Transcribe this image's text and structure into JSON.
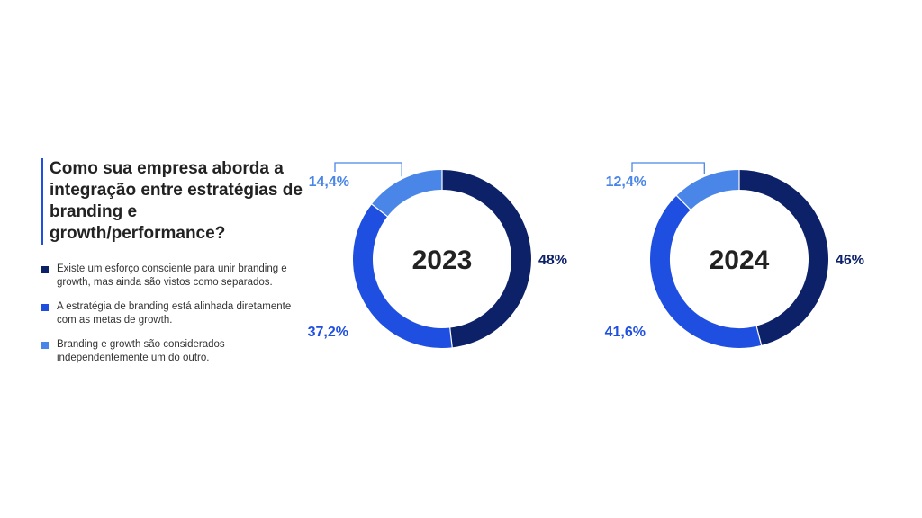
{
  "title": "Como sua empresa aborda a integração entre estratégias de branding e growth/performance?",
  "legend": [
    {
      "label": "Existe um esforço consciente para unir branding e growth, mas ainda são vistos como separados.",
      "color": "#0d2169"
    },
    {
      "label": "A estratégia de branding está alinhada diretamente com as metas de growth.",
      "color": "#1f4fe0"
    },
    {
      "label": "Branding e growth são considerados independentemente um do outro.",
      "color": "#4a86e8"
    }
  ],
  "chart_data": [
    {
      "type": "pie",
      "variant": "donut",
      "center_label": "2023",
      "categories": [
        "Existe um esforço consciente para unir branding e growth, mas ainda são vistos como separados.",
        "A estratégia de branding está alinhada diretamente com as metas de growth.",
        "Branding e growth são considerados independentemente um do outro."
      ],
      "values": [
        48,
        37.2,
        14.4
      ],
      "value_labels": [
        "48%",
        "37,2%",
        "14,4%"
      ],
      "colors": [
        "#0d2169",
        "#1f4fe0",
        "#4a86e8"
      ]
    },
    {
      "type": "pie",
      "variant": "donut",
      "center_label": "2024",
      "categories": [
        "Existe um esforço consciente para unir branding e growth, mas ainda são vistos como separados.",
        "A estratégia de branding está alinhada diretamente com as metas de growth.",
        "Branding e growth são considerados independentemente um do outro."
      ],
      "values": [
        46,
        41.6,
        12.4
      ],
      "value_labels": [
        "46%",
        "41,6%",
        "12,4%"
      ],
      "colors": [
        "#0d2169",
        "#1f4fe0",
        "#4a86e8"
      ]
    }
  ]
}
